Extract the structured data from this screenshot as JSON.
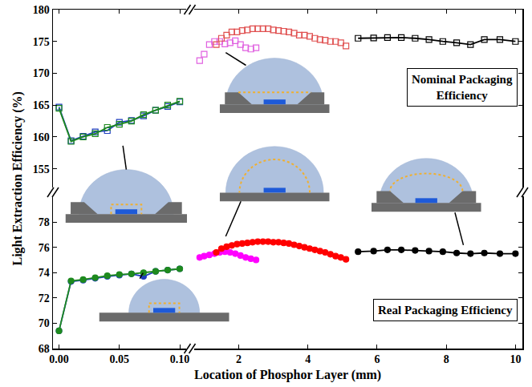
{
  "chart_data": [
    {
      "type": "line",
      "xlabel": "Location of Phosphor Layer (mm)",
      "ylabel": "Light Extraction Efficiency (%)",
      "xlim": [
        -0.005,
        0.105
      ],
      "xticks": [
        {
          "value": 0,
          "label": "0.00"
        },
        {
          "value": 0.05,
          "label": "0.05"
        },
        {
          "value": 0.1,
          "label": "0.10"
        }
      ],
      "ylim": [
        68,
        80
      ],
      "yticks": [
        68,
        70,
        72,
        74,
        76,
        78
      ],
      "tick_labels": true,
      "grid": false,
      "series": [
        {
          "color": "#1f3fbf",
          "marker": "circle",
          "line_style": "solid",
          "x": [
            0,
            0.01,
            0.02,
            0.03,
            0.04,
            0.05,
            0.06,
            0.07,
            0.08,
            0.09,
            0.1
          ],
          "values": [
            69.4,
            73.3,
            73.4,
            73.55,
            73.7,
            73.8,
            73.9,
            73.7,
            74.1,
            74.2,
            74.3
          ]
        },
        {
          "color": "#1e8a1e",
          "marker": "circle",
          "line_style": "solid",
          "x": [
            0,
            0.01,
            0.02,
            0.03,
            0.04,
            0.05,
            0.06,
            0.07,
            0.08,
            0.09,
            0.1
          ],
          "values": [
            69.4,
            73.35,
            73.45,
            73.6,
            73.75,
            73.85,
            73.9,
            74.0,
            74.1,
            74.2,
            74.3
          ]
        }
      ]
    },
    {
      "type": "line",
      "xlim": [
        0.7,
        10.2
      ],
      "xticks": [
        2,
        4,
        6,
        8,
        10
      ],
      "ylim": [
        68,
        80
      ],
      "yticks": [
        68,
        70,
        72,
        74,
        76,
        78
      ],
      "tick_labels": "x",
      "grid": false,
      "annotations": [
        "Real Packaging Efficiency"
      ],
      "series": [
        {
          "color": "#ff00ff",
          "marker": "circle",
          "line_style": "none",
          "x": [
            0.87,
            1.0,
            1.15,
            1.3,
            1.45,
            1.6,
            1.75,
            1.9,
            2.05,
            2.2,
            2.35,
            2.5
          ],
          "values": [
            75.2,
            75.3,
            75.4,
            75.5,
            75.6,
            75.65,
            75.6,
            75.5,
            75.35,
            75.2,
            75.1,
            75.0
          ]
        },
        {
          "color": "#ff0000",
          "marker": "circle",
          "line_style": "none",
          "x": [
            1.35,
            1.5,
            1.65,
            1.8,
            1.95,
            2.1,
            2.25,
            2.4,
            2.55,
            2.7,
            2.85,
            3.0,
            3.15,
            3.3,
            3.45,
            3.6,
            3.75,
            3.9,
            4.05,
            4.2,
            4.35,
            4.5,
            4.65,
            4.8,
            4.95,
            5.1
          ],
          "values": [
            75.6,
            75.9,
            76.05,
            76.15,
            76.25,
            76.3,
            76.35,
            76.4,
            76.45,
            76.45,
            76.45,
            76.4,
            76.4,
            76.35,
            76.3,
            76.2,
            76.1,
            76.0,
            75.9,
            75.8,
            75.7,
            75.6,
            75.45,
            75.3,
            75.2,
            75.05
          ]
        },
        {
          "color": "#000000",
          "marker": "circle",
          "line_style": "solid",
          "x": [
            5.45,
            5.9,
            6.3,
            6.7,
            7.1,
            7.5,
            7.9,
            8.3,
            8.7,
            9.1,
            9.55,
            10
          ],
          "values": [
            75.65,
            75.7,
            75.8,
            75.8,
            75.75,
            75.7,
            75.65,
            75.55,
            75.5,
            75.55,
            75.5,
            75.5
          ]
        }
      ]
    },
    {
      "type": "line",
      "xlim": [
        -0.005,
        0.105
      ],
      "xticks": [
        {
          "value": 0,
          "label": "0.00"
        },
        {
          "value": 0.05,
          "label": "0.05"
        },
        {
          "value": 0.1,
          "label": "0.10"
        }
      ],
      "ylim": [
        152,
        180
      ],
      "yticks": [
        155,
        160,
        165,
        170,
        175,
        180
      ],
      "tick_labels": "y",
      "grid": false,
      "series": [
        {
          "color": "#1f3fbf",
          "marker": "open square",
          "line_style": "solid",
          "x": [
            0,
            0.01,
            0.02,
            0.03,
            0.04,
            0.05,
            0.06,
            0.07,
            0.08,
            0.09,
            0.1
          ],
          "values": [
            164.7,
            159.4,
            160.1,
            160.8,
            161.0,
            162.3,
            162.6,
            163.3,
            164.2,
            164.8,
            165.5
          ]
        },
        {
          "color": "#1e8a1e",
          "marker": "open square",
          "line_style": "solid",
          "x": [
            0,
            0.01,
            0.02,
            0.03,
            0.04,
            0.05,
            0.06,
            0.07,
            0.08,
            0.09,
            0.1
          ],
          "values": [
            164.5,
            159.3,
            160.0,
            160.5,
            161.5,
            162.0,
            162.5,
            163.5,
            164.2,
            165.0,
            165.6
          ]
        }
      ]
    },
    {
      "type": "line",
      "xlim": [
        0.7,
        10.2
      ],
      "xticks": [
        2,
        4,
        6,
        8,
        10
      ],
      "ylim": [
        152,
        180
      ],
      "yticks": [
        155,
        160,
        165,
        170,
        175,
        180
      ],
      "tick_labels": false,
      "grid": false,
      "annotations": [
        "Nominal Packaging Efficiency"
      ],
      "series": [
        {
          "color": "#e060e0",
          "marker": "open square",
          "line_style": "none",
          "x": [
            0.87,
            1.0,
            1.15,
            1.3,
            1.45,
            1.6,
            1.75,
            1.9,
            2.05,
            2.2,
            2.35,
            2.5
          ],
          "values": [
            172.0,
            173.0,
            174.5,
            175.0,
            175.0,
            174.6,
            174.8,
            175.1,
            174.5,
            174.0,
            173.8,
            174.0
          ]
        },
        {
          "color": "#e05050",
          "marker": "open square",
          "line_style": "none",
          "x": [
            1.35,
            1.5,
            1.65,
            1.8,
            1.95,
            2.1,
            2.25,
            2.4,
            2.55,
            2.7,
            2.85,
            3.0,
            3.15,
            3.3,
            3.45,
            3.6,
            3.75,
            3.9,
            4.05,
            4.2,
            4.35,
            4.5,
            4.65,
            4.8,
            4.95,
            5.1
          ],
          "values": [
            174.5,
            175.5,
            176.0,
            176.5,
            176.5,
            176.7,
            176.8,
            177.0,
            177.0,
            177.0,
            177.0,
            176.8,
            176.7,
            176.6,
            176.5,
            176.3,
            176.0,
            176.0,
            175.8,
            175.5,
            175.3,
            175.2,
            175.0,
            175.0,
            174.8,
            174.3
          ]
        },
        {
          "color": "#000000",
          "marker": "open square",
          "line_style": "solid",
          "x": [
            5.45,
            5.9,
            6.3,
            6.7,
            7.1,
            7.5,
            7.9,
            8.3,
            8.7,
            9.1,
            9.55,
            10
          ],
          "values": [
            175.5,
            175.55,
            175.6,
            175.6,
            175.5,
            175.3,
            175.0,
            174.8,
            174.5,
            175.3,
            175.3,
            175.0
          ]
        }
      ]
    }
  ]
}
